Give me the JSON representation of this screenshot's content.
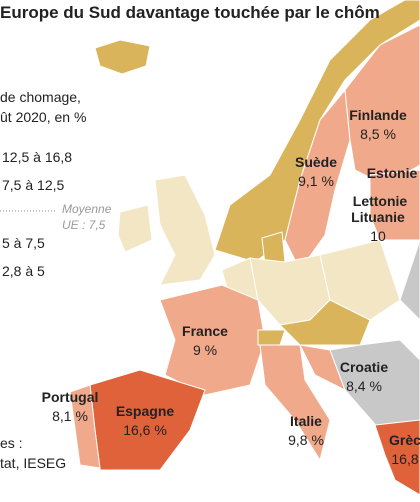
{
  "header": {
    "title": "Europe du Sud davantage touchée par le chôm"
  },
  "legend": {
    "title_lines": [
      "de chomage,",
      "ût 2020, en %"
    ],
    "items": [
      "12,5 à 16,8",
      "7,5 à 12,5",
      "5 à 7,5",
      "2,8 à 5"
    ],
    "average_lines": [
      "Moyenne",
      "UE : 7,5"
    ]
  },
  "source_lines": [
    "es :",
    "tat, IESEG"
  ],
  "labels": [
    {
      "name": "Finlande",
      "value": "8,5 %"
    },
    {
      "name": "Suède",
      "value": "9,1 %"
    },
    {
      "name": "Estonie"
    },
    {
      "name": "Lettonie"
    },
    {
      "name": "Lituanie",
      "value": "10"
    },
    {
      "name": "France",
      "value": "9 %"
    },
    {
      "name": "Croatie",
      "value": "8,4 %"
    },
    {
      "name": "Italie",
      "value": "9,8 %"
    },
    {
      "name": "Portugal",
      "value": "8,1 %"
    },
    {
      "name": "Espagne",
      "value": "16,6 %"
    },
    {
      "name": "Grèc",
      "value": "16,8"
    }
  ]
}
